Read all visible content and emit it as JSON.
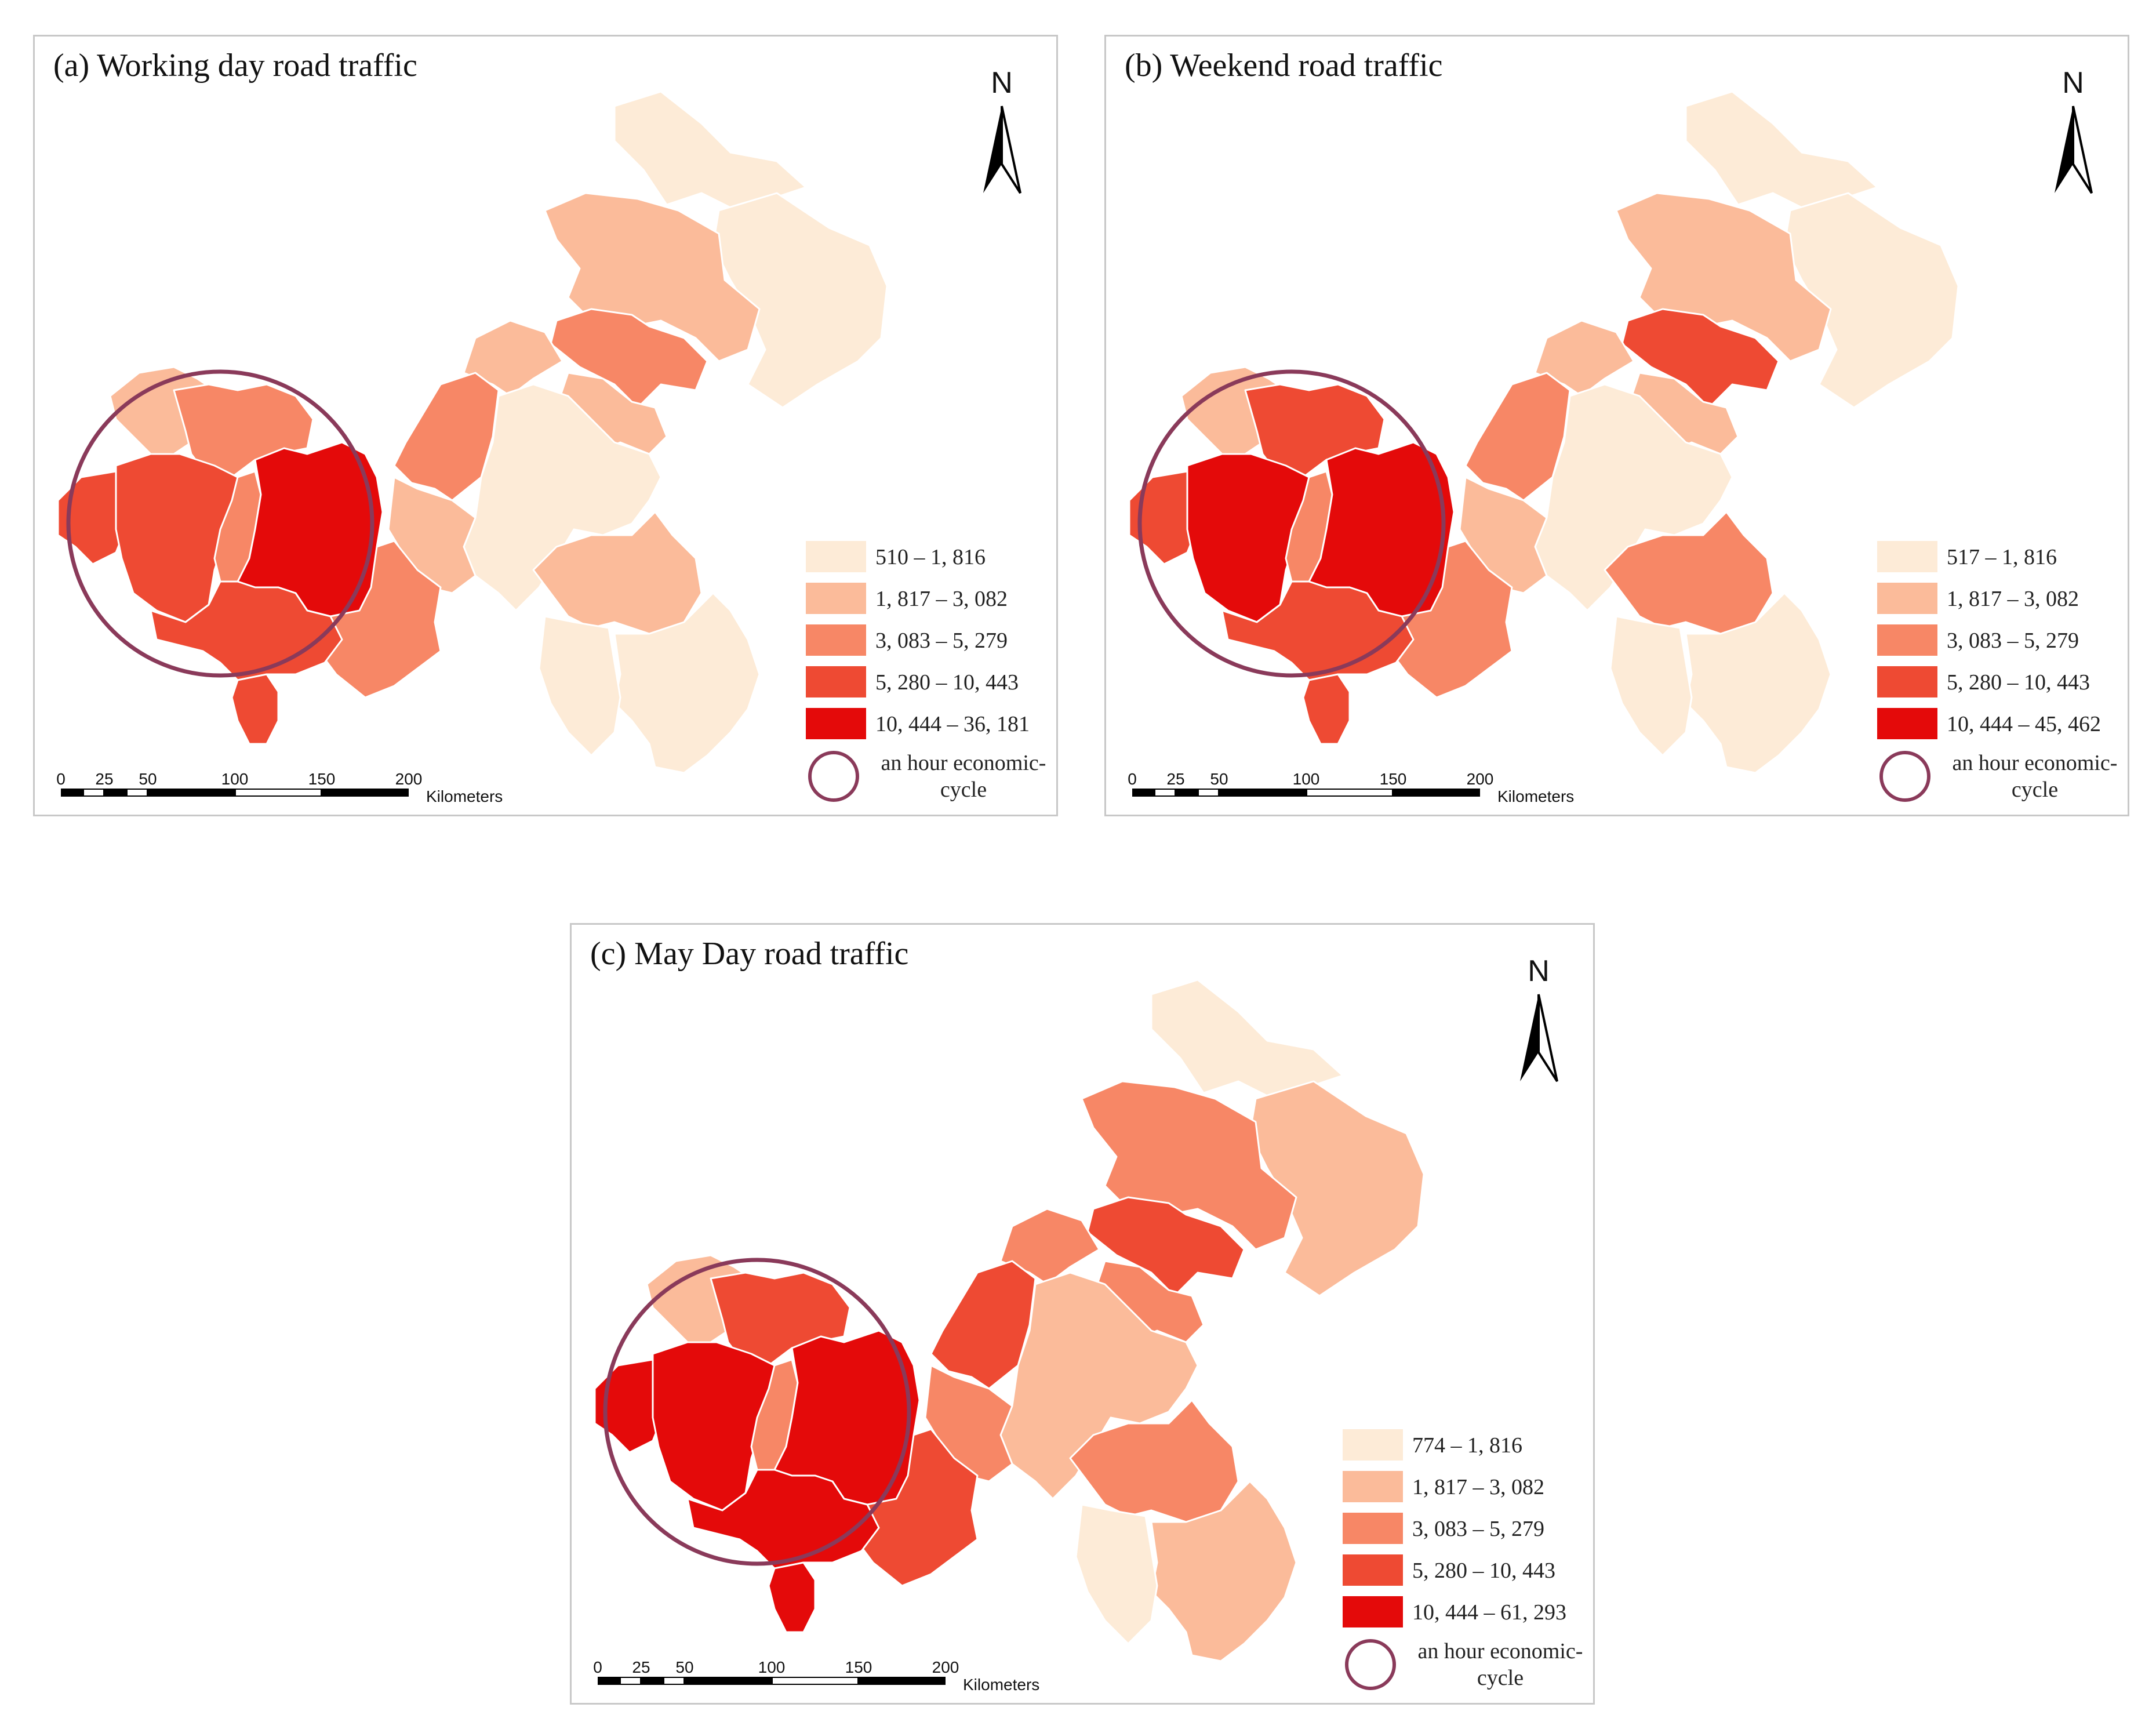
{
  "colors": {
    "class1": "#fdebd7",
    "class2": "#fbbb9a",
    "class3": "#f78766",
    "class4": "#ee4a33",
    "class5": "#e40a0a",
    "circle": "#8a3a5a",
    "border": "#ffffff"
  },
  "panels": [
    {
      "title": "(a) Working day road traffic",
      "north": "N",
      "legend": [
        {
          "label": "510  –  1, 816",
          "class": "class1"
        },
        {
          "label": "1, 817  –  3, 082",
          "class": "class2"
        },
        {
          "label": "3, 083  –  5, 279",
          "class": "class3"
        },
        {
          "label": "5, 280  –  10, 443",
          "class": "class4"
        },
        {
          "label": "10, 444  –  36, 181",
          "class": "class5"
        }
      ],
      "circle_label": "an hour economic-cycle",
      "scale": {
        "ticks": [
          "0",
          "25",
          "50",
          "100",
          "150",
          "200"
        ],
        "unit": "Kilometers"
      },
      "regions": {
        "west_tip": "class4",
        "core_west": "class4",
        "core_center": "class5",
        "strip": "class3",
        "north_west_a": "class2",
        "north_west_b": "class3",
        "south_core": "class4",
        "south_tail": "class4",
        "south_east_core": "class3",
        "east_ring": "class2",
        "corridor_a": "class3",
        "corridor_b": "class2",
        "mid_north": "class3",
        "mid_center": "class1",
        "mid_upper": "class2",
        "north_block": "class2",
        "far_north": "class1",
        "north_east": "class1",
        "south_east_a": "class2",
        "south_east_b": "class1",
        "south_far": "class1"
      }
    },
    {
      "title": "(b) Weekend road traffic",
      "north": "N",
      "legend": [
        {
          "label": "517  –  1, 816",
          "class": "class1"
        },
        {
          "label": "1, 817  –  3, 082",
          "class": "class2"
        },
        {
          "label": "3, 083  –  5, 279",
          "class": "class3"
        },
        {
          "label": "5, 280  –  10, 443",
          "class": "class4"
        },
        {
          "label": "10, 444  –  45, 462",
          "class": "class5"
        }
      ],
      "circle_label": "an hour economic-cycle",
      "scale": {
        "ticks": [
          "0",
          "25",
          "50",
          "100",
          "150",
          "200"
        ],
        "unit": "Kilometers"
      },
      "regions": {
        "west_tip": "class4",
        "core_west": "class5",
        "core_center": "class5",
        "strip": "class3",
        "north_west_a": "class2",
        "north_west_b": "class4",
        "south_core": "class4",
        "south_tail": "class4",
        "south_east_core": "class3",
        "east_ring": "class2",
        "corridor_a": "class3",
        "corridor_b": "class2",
        "mid_north": "class4",
        "mid_center": "class1",
        "mid_upper": "class2",
        "north_block": "class2",
        "far_north": "class1",
        "north_east": "class1",
        "south_east_a": "class3",
        "south_east_b": "class1",
        "south_far": "class1"
      }
    },
    {
      "title": "(c) May Day road traffic",
      "north": "N",
      "legend": [
        {
          "label": "774  –  1, 816",
          "class": "class1"
        },
        {
          "label": "1, 817  –  3, 082",
          "class": "class2"
        },
        {
          "label": "3, 083  –  5, 279",
          "class": "class3"
        },
        {
          "label": "5, 280  –  10, 443",
          "class": "class4"
        },
        {
          "label": "10, 444  –  61, 293",
          "class": "class5"
        }
      ],
      "circle_label": "an hour economic-cycle",
      "scale": {
        "ticks": [
          "0",
          "25",
          "50",
          "100",
          "150",
          "200"
        ],
        "unit": "Kilometers"
      },
      "regions": {
        "west_tip": "class5",
        "core_west": "class5",
        "core_center": "class5",
        "strip": "class3",
        "north_west_a": "class2",
        "north_west_b": "class4",
        "south_core": "class5",
        "south_tail": "class5",
        "south_east_core": "class4",
        "east_ring": "class3",
        "corridor_a": "class4",
        "corridor_b": "class3",
        "mid_north": "class4",
        "mid_center": "class2",
        "mid_upper": "class3",
        "north_block": "class3",
        "far_north": "class1",
        "north_east": "class2",
        "south_east_a": "class3",
        "south_east_b": "class2",
        "south_far": "class1"
      }
    }
  ]
}
